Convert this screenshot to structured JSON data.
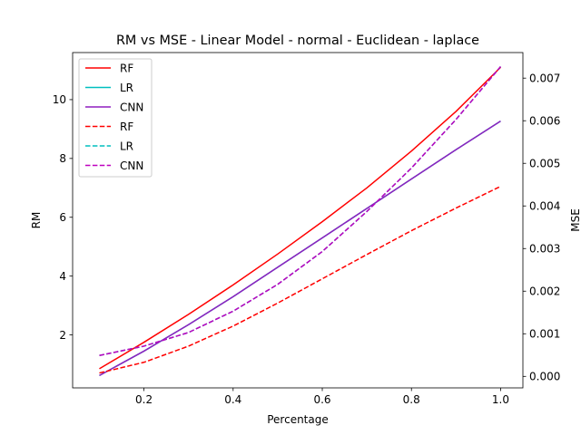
{
  "chart_data": {
    "type": "line",
    "title": "RM vs MSE - Linear Model - normal - Euclidean - laplace",
    "xlabel": "Percentage",
    "ylabel_left": "RM",
    "ylabel_right": "MSE",
    "x": [
      0.1,
      0.2,
      0.3,
      0.4,
      0.5,
      0.6,
      0.7,
      0.8,
      0.9,
      1.0
    ],
    "xlim": [
      0.04,
      1.05
    ],
    "ylim_left": [
      0.2,
      11.6
    ],
    "ylim_right": [
      -0.00027,
      0.0076
    ],
    "xticks": [
      0.2,
      0.4,
      0.6,
      0.8,
      1.0
    ],
    "xtick_labels": [
      "0.2",
      "0.4",
      "0.6",
      "0.8",
      "1.0"
    ],
    "yticks_left": [
      2,
      4,
      6,
      8,
      10
    ],
    "ytick_labels_left": [
      "2",
      "4",
      "6",
      "8",
      "10"
    ],
    "yticks_right": [
      0.0,
      0.001,
      0.002,
      0.003,
      0.004,
      0.005,
      0.006,
      0.007
    ],
    "ytick_labels_right": [
      "0.000",
      "0.001",
      "0.002",
      "0.003",
      "0.004",
      "0.005",
      "0.006",
      "0.007"
    ],
    "grid": false,
    "legend_position": "upper-left",
    "series": [
      {
        "name": "RF",
        "axis": "left",
        "style": "solid",
        "color": "#ff0000",
        "values": [
          0.85,
          1.75,
          2.7,
          3.7,
          4.75,
          5.85,
          7.0,
          8.25,
          9.6,
          11.1
        ]
      },
      {
        "name": "LR",
        "axis": "left",
        "style": "solid",
        "color": "#00bfbf",
        "values": [
          0.62,
          1.45,
          2.35,
          3.3,
          4.3,
          5.3,
          6.3,
          7.3,
          8.3,
          9.27
        ]
      },
      {
        "name": "CNN",
        "axis": "left",
        "style": "solid",
        "color": "#8f1fbf",
        "values": [
          0.62,
          1.45,
          2.35,
          3.3,
          4.3,
          5.3,
          6.3,
          7.3,
          8.3,
          9.27
        ]
      },
      {
        "name": "RF",
        "axis": "right",
        "style": "dashed",
        "color": "#ff0000",
        "values": [
          8e-05,
          0.00033,
          0.00071,
          0.00118,
          0.00172,
          0.00229,
          0.00286,
          0.00342,
          0.00395,
          0.00446
        ]
      },
      {
        "name": "LR",
        "axis": "right",
        "style": "dashed",
        "color": "#00bfbf",
        "values": [
          0.00049,
          0.00071,
          0.00103,
          0.00153,
          0.00216,
          0.00293,
          0.00387,
          0.00489,
          0.00603,
          0.00727
        ]
      },
      {
        "name": "CNN",
        "axis": "right",
        "style": "dashed",
        "color": "#bf00bf",
        "values": [
          0.00049,
          0.00071,
          0.00103,
          0.00153,
          0.00216,
          0.00293,
          0.00387,
          0.00489,
          0.00603,
          0.00727
        ]
      }
    ]
  }
}
